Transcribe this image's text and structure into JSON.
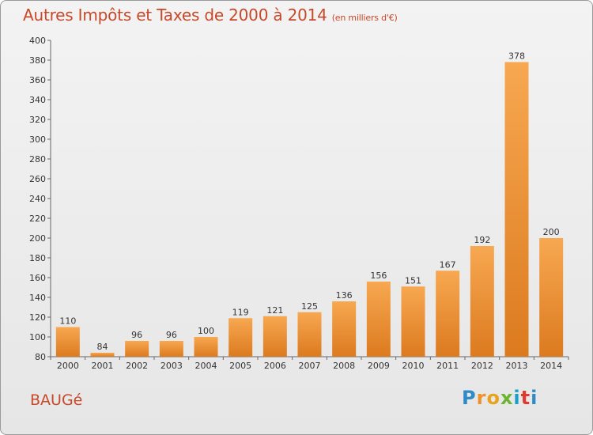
{
  "header": {
    "title": "Autres Impôts et Taxes de 2000 à 2014",
    "unit": "(en milliers d'€)"
  },
  "footer": {
    "commune": "BAUGé",
    "logo": [
      "P",
      "r",
      "o",
      "x",
      "i",
      "t",
      "i"
    ]
  },
  "colors": {
    "bar_top": "#f7a851",
    "bar_bottom": "#dc7a1f",
    "title": "#c8482a",
    "logo": [
      "#2e8bc8",
      "#f0902a",
      "#e8a31d",
      "#6ab42f",
      "#1aa0c8",
      "#e03a2e",
      "#2e8bc8"
    ]
  },
  "chart_data": {
    "type": "bar",
    "title": "Autres Impôts et Taxes de 2000 à 2014",
    "subtitle": "(en milliers d'€)",
    "categories": [
      "2000",
      "2001",
      "2002",
      "2003",
      "2004",
      "2005",
      "2006",
      "2007",
      "2008",
      "2009",
      "2010",
      "2011",
      "2012",
      "2013",
      "2014"
    ],
    "values": [
      110,
      84,
      96,
      96,
      100,
      119,
      121,
      125,
      136,
      156,
      151,
      167,
      192,
      378,
      200
    ],
    "ylim": [
      80,
      400
    ],
    "yticks": [
      80,
      100,
      120,
      140,
      160,
      180,
      200,
      220,
      240,
      260,
      280,
      300,
      320,
      340,
      360,
      380,
      400
    ],
    "grid": false,
    "legend": "none"
  }
}
